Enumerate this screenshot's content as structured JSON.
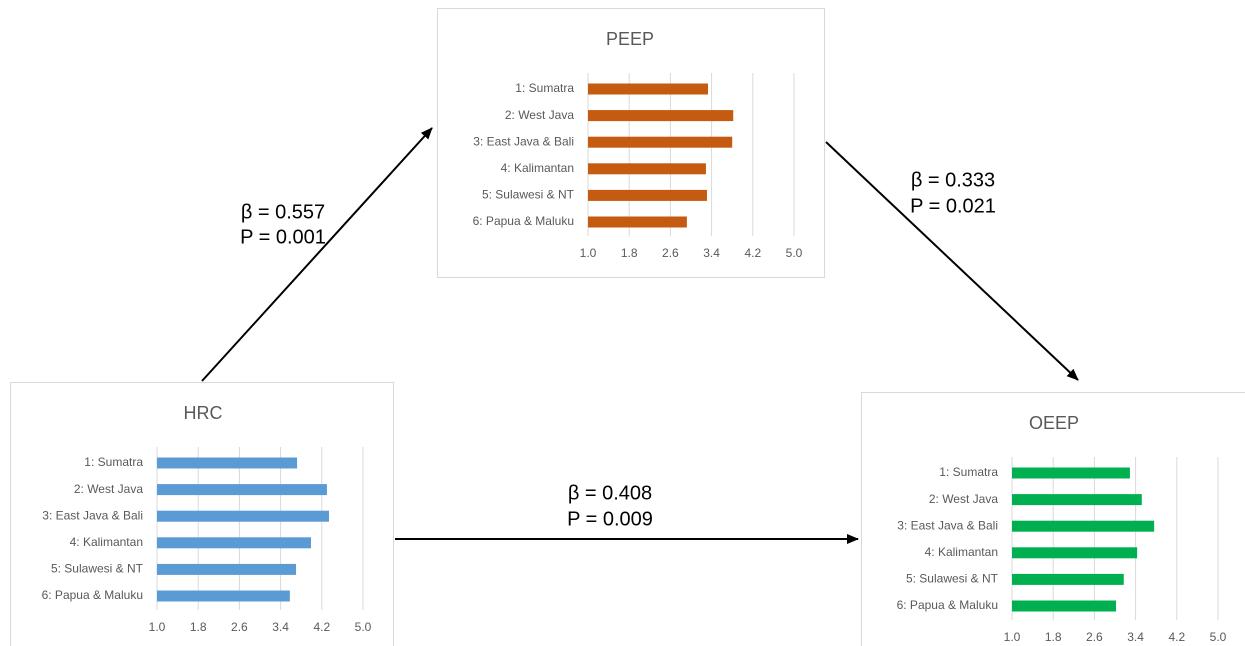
{
  "chart_data": [
    {
      "type": "bar",
      "orientation": "horizontal",
      "title": "HRC",
      "categories": [
        "1: Sumatra",
        "2: West Java",
        "3: East Java & Bali",
        "4: Kalimantan",
        "5: Sulawesi & NT",
        "6: Papua & Maluku"
      ],
      "values": [
        3.72,
        4.3,
        4.34,
        3.99,
        3.7,
        3.58
      ],
      "color": "#5b9bd5",
      "xlim": [
        1,
        5
      ],
      "xticks": [
        {
          "value": 1,
          "label": "1.0"
        },
        1.8,
        2.6,
        3.4,
        4.2,
        {
          "value": 5,
          "label": "5.0"
        }
      ],
      "grid": true
    },
    {
      "type": "bar",
      "orientation": "horizontal",
      "title": "PEEP",
      "categories": [
        "1: Sumatra",
        "2: West Java",
        "3: East Java & Bali",
        "4: Kalimantan",
        "5: Sulawesi & NT",
        "6: Papua & Maluku"
      ],
      "values": [
        3.33,
        3.82,
        3.8,
        3.29,
        3.31,
        2.92
      ],
      "color": "#c55a11",
      "xlim": [
        1,
        5
      ],
      "xticks": [
        {
          "value": 1,
          "label": "1.0"
        },
        1.8,
        2.6,
        3.4,
        4.2,
        {
          "value": 5,
          "label": "5.0"
        }
      ],
      "grid": true
    },
    {
      "type": "bar",
      "orientation": "horizontal",
      "title": "OEEP",
      "categories": [
        "1: Sumatra",
        "2: West Java",
        "3: East Java & Bali",
        "4: Kalimantan",
        "5: Sulawesi & NT",
        "6: Papua & Maluku"
      ],
      "values": [
        3.29,
        3.52,
        3.76,
        3.43,
        3.17,
        3.02
      ],
      "color": "#00b050",
      "xlim": [
        1,
        5
      ],
      "xticks": [
        {
          "value": 1,
          "label": "1.0"
        },
        1.8,
        2.6,
        3.4,
        4.2,
        {
          "value": 5,
          "label": "5.0"
        }
      ],
      "grid": true
    }
  ],
  "paths": [
    {
      "beta": "β = 0.557",
      "p": "P = 0.001"
    },
    {
      "beta": "β = 0.333",
      "p": "P = 0.021"
    },
    {
      "beta": "β = 0.408",
      "p": "P = 0.009"
    }
  ]
}
